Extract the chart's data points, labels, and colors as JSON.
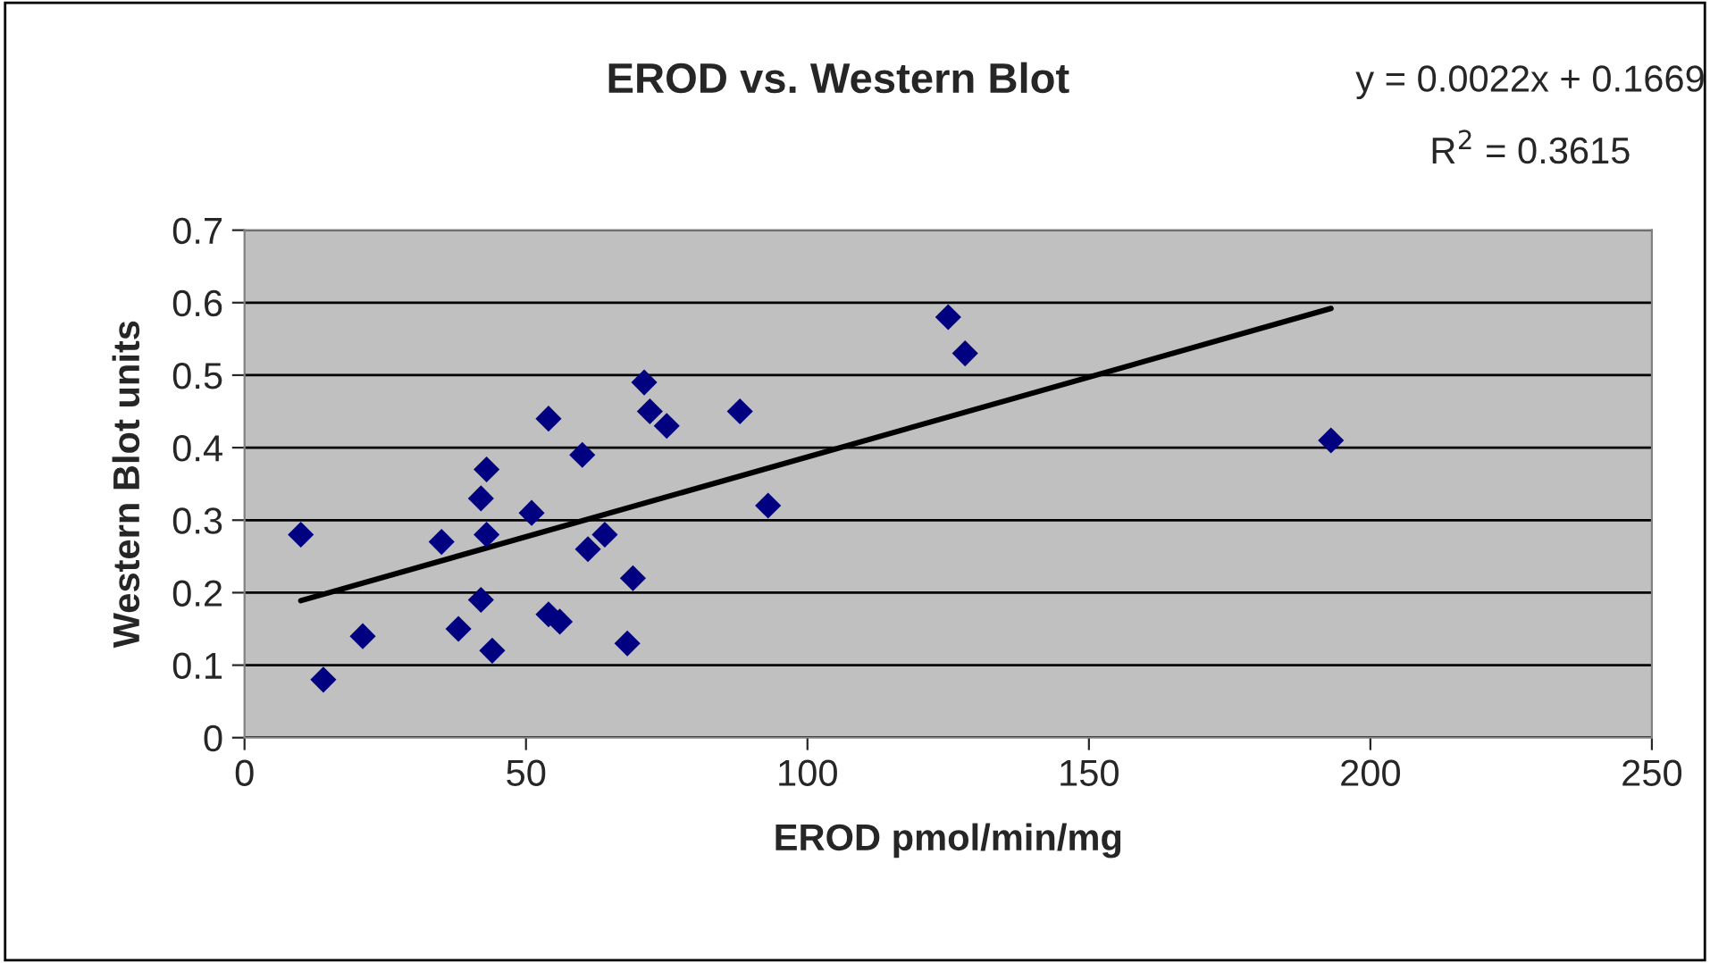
{
  "chart_data": {
    "type": "scatter",
    "title": "EROD vs. Western Blot",
    "xlabel": "EROD pmol/min/mg",
    "ylabel": "Western Blot units",
    "annotations": [
      "y = 0.0022x + 0.1669",
      "R$^{2}$ = 0.3615"
    ],
    "xlim": [
      0,
      250
    ],
    "xticks": [
      0,
      50,
      100,
      150,
      200,
      250
    ],
    "ylim": [
      0,
      0.7
    ],
    "yticks": [
      0,
      0.1,
      0.2,
      0.3,
      0.4,
      0.5,
      0.6,
      0.7
    ],
    "grid": "y",
    "legend": false,
    "series": [
      {
        "marker": "diamond",
        "color": "#000080",
        "x": [
          10,
          14,
          21,
          35,
          38,
          42,
          42,
          43,
          43,
          44,
          51,
          54,
          54,
          56,
          60,
          61,
          64,
          68,
          69,
          71,
          72,
          75,
          88,
          93,
          125,
          128,
          193
        ],
        "values": [
          0.28,
          0.08,
          0.14,
          0.27,
          0.15,
          0.33,
          0.19,
          0.37,
          0.28,
          0.12,
          0.31,
          0.44,
          0.17,
          0.16,
          0.39,
          0.26,
          0.28,
          0.13,
          0.22,
          0.49,
          0.45,
          0.43,
          0.45,
          0.32,
          0.58,
          0.53,
          0.41
        ]
      },
      {
        "type": "line",
        "color": "#000000",
        "x": [
          10,
          193
        ],
        "values": [
          0.189,
          0.592
        ]
      }
    ]
  }
}
